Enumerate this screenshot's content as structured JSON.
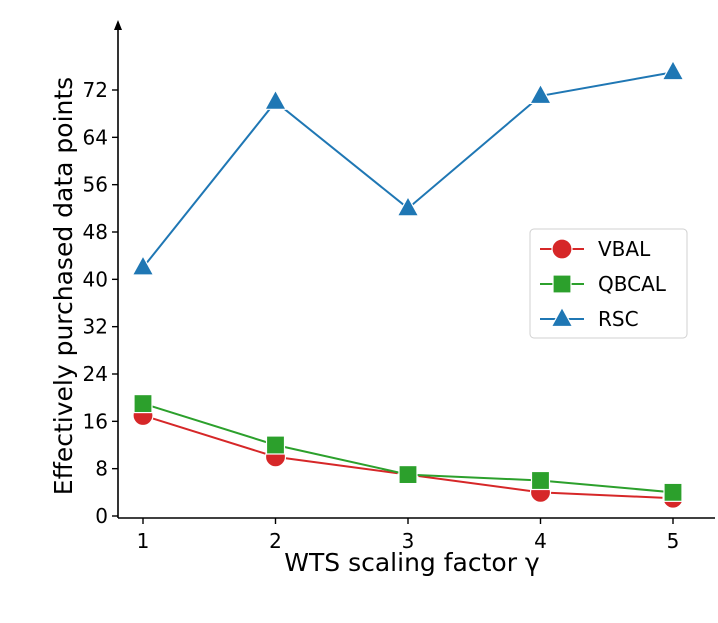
{
  "chart_data": {
    "type": "line",
    "title": "",
    "xlabel": "WTS scaling factor γ",
    "ylabel": "Effectively purchased data points",
    "x": [
      1,
      2,
      3,
      4,
      5
    ],
    "x_ticks": [
      "1",
      "2",
      "3",
      "4",
      "5"
    ],
    "y_ticks": [
      "0",
      "8",
      "16",
      "24",
      "32",
      "40",
      "48",
      "56",
      "64",
      "72"
    ],
    "xlim": [
      0.85,
      5.35
    ],
    "ylim": [
      0,
      80
    ],
    "grid": false,
    "legend_position": "center-right",
    "series": [
      {
        "name": "VBAL",
        "values": [
          17,
          10,
          7,
          4,
          3
        ],
        "color": "#d62728",
        "marker": "circle"
      },
      {
        "name": "QBCAL",
        "values": [
          19,
          12,
          7,
          6,
          4
        ],
        "color": "#2ca02c",
        "marker": "square"
      },
      {
        "name": "RSC",
        "values": [
          42,
          70,
          52,
          71,
          75
        ],
        "color": "#1f77b4",
        "marker": "triangle"
      }
    ]
  }
}
